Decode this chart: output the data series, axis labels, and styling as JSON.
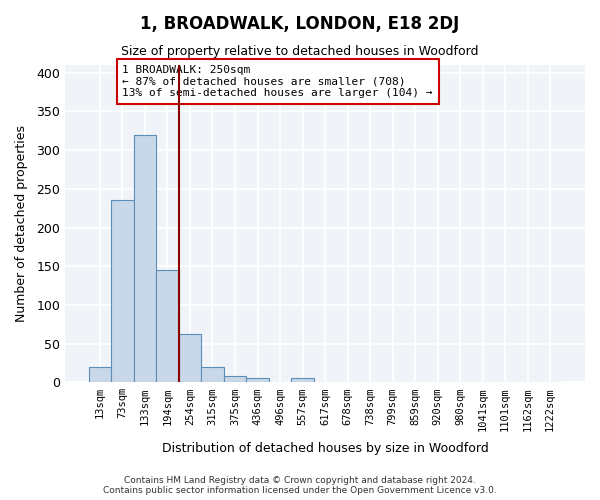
{
  "title": "1, BROADWALK, LONDON, E18 2DJ",
  "subtitle": "Size of property relative to detached houses in Woodford",
  "xlabel": "Distribution of detached houses by size in Woodford",
  "ylabel": "Number of detached properties",
  "bar_color": "#c8d8e8",
  "bar_edge_color": "#5b8db8",
  "vline_color": "#8b0000",
  "vline_x": 4,
  "annotation_text": "1 BROADWALK: 250sqm\n← 87% of detached houses are smaller (708)\n13% of semi-detached houses are larger (104) →",
  "annotation_box_color": "white",
  "annotation_box_edge": "#cc0000",
  "categories": [
    "13sqm",
    "73sqm",
    "133sqm",
    "194sqm",
    "254sqm",
    "315sqm",
    "375sqm",
    "436sqm",
    "496sqm",
    "557sqm",
    "617sqm",
    "678sqm",
    "738sqm",
    "799sqm",
    "859sqm",
    "920sqm",
    "980sqm",
    "1041sqm",
    "1101sqm",
    "1162sqm",
    "1222sqm"
  ],
  "values": [
    20,
    235,
    320,
    145,
    63,
    20,
    8,
    5,
    0,
    5,
    0,
    0,
    0,
    0,
    0,
    0,
    0,
    0,
    0,
    0,
    0
  ],
  "ylim": [
    0,
    410
  ],
  "yticks": [
    0,
    50,
    100,
    150,
    200,
    250,
    300,
    350,
    400
  ],
  "footer": "Contains HM Land Registry data © Crown copyright and database right 2024.\nContains public sector information licensed under the Open Government Licence v3.0.",
  "bg_color": "#f0f4f8",
  "grid_color": "#ffffff",
  "figsize": [
    6.0,
    5.0
  ],
  "dpi": 100
}
